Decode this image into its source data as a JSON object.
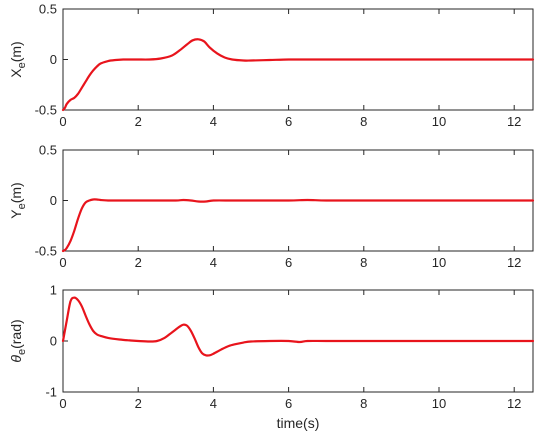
{
  "chart_data": [
    {
      "type": "line",
      "ylabel_main": "X",
      "ylabel_sub": "e",
      "ylabel_unit": "(m)",
      "ylabel_italic": false,
      "xlabel": "",
      "xlim": [
        0,
        12.5
      ],
      "ylim": [
        -0.5,
        0.5
      ],
      "xticks": [
        0,
        2,
        4,
        6,
        8,
        10,
        12
      ],
      "yticks": [
        -0.5,
        0,
        0.5
      ],
      "ytick_labels": [
        "-0.5",
        "0",
        "0.5"
      ],
      "grid": false,
      "color": "#e8141c",
      "series": [
        {
          "x": [
            0,
            0.05,
            0.1,
            0.2,
            0.3,
            0.4,
            0.5,
            0.6,
            0.7,
            0.8,
            0.9,
            1.0,
            1.2,
            1.4,
            1.6,
            1.8,
            2.0,
            2.3,
            2.6,
            2.9,
            3.1,
            3.3,
            3.45,
            3.6,
            3.75,
            3.9,
            4.1,
            4.3,
            4.5,
            4.8,
            5.0,
            5.5,
            6.0,
            6.5,
            7.0,
            8.0,
            9.0,
            10.0,
            11.0,
            12.5
          ],
          "y": [
            -0.5,
            -0.48,
            -0.44,
            -0.4,
            -0.38,
            -0.34,
            -0.28,
            -0.22,
            -0.16,
            -0.11,
            -0.07,
            -0.04,
            -0.015,
            -0.005,
            0.0,
            0.0,
            0.0,
            0.0,
            0.01,
            0.04,
            0.09,
            0.15,
            0.19,
            0.2,
            0.18,
            0.12,
            0.06,
            0.02,
            0.0,
            -0.01,
            -0.01,
            -0.005,
            0.0,
            0.0,
            0.0,
            0.0,
            0.0,
            0.0,
            0.0,
            0.0
          ]
        }
      ]
    },
    {
      "type": "line",
      "ylabel_main": "Y",
      "ylabel_sub": "e",
      "ylabel_unit": "(m)",
      "ylabel_italic": false,
      "xlabel": "",
      "xlim": [
        0,
        12.5
      ],
      "ylim": [
        -0.5,
        0.5
      ],
      "xticks": [
        0,
        2,
        4,
        6,
        8,
        10,
        12
      ],
      "yticks": [
        -0.5,
        0,
        0.5
      ],
      "ytick_labels": [
        "-0.5",
        "0",
        "0.5"
      ],
      "grid": false,
      "color": "#e8141c",
      "series": [
        {
          "x": [
            0,
            0.05,
            0.1,
            0.2,
            0.3,
            0.4,
            0.5,
            0.6,
            0.7,
            0.8,
            0.9,
            1.0,
            1.2,
            1.5,
            2.0,
            2.5,
            3.0,
            3.2,
            3.4,
            3.6,
            3.8,
            4.0,
            4.5,
            5.0,
            6.0,
            6.5,
            7.0,
            8.0,
            10.0,
            12.5
          ],
          "y": [
            -0.5,
            -0.49,
            -0.47,
            -0.4,
            -0.3,
            -0.18,
            -0.08,
            -0.02,
            0.0,
            0.01,
            0.01,
            0.005,
            0.0,
            0.0,
            0.0,
            0.0,
            0.0,
            0.005,
            0.0,
            -0.01,
            -0.01,
            0.0,
            0.0,
            0.0,
            0.0,
            0.005,
            0.0,
            0.0,
            0.0,
            0.0
          ]
        }
      ]
    },
    {
      "type": "line",
      "ylabel_main": "θ",
      "ylabel_sub": "e",
      "ylabel_unit": "(rad)",
      "ylabel_italic": true,
      "xlabel": "time(s)",
      "xlim": [
        0,
        12.5
      ],
      "ylim": [
        -1,
        1
      ],
      "xticks": [
        0,
        2,
        4,
        6,
        8,
        10,
        12
      ],
      "yticks": [
        -1,
        0,
        1
      ],
      "ytick_labels": [
        "-1",
        "0",
        "1"
      ],
      "grid": false,
      "color": "#e8141c",
      "series": [
        {
          "x": [
            0,
            0.1,
            0.2,
            0.3,
            0.4,
            0.5,
            0.6,
            0.7,
            0.8,
            0.9,
            1.0,
            1.2,
            1.5,
            1.8,
            2.0,
            2.3,
            2.5,
            2.7,
            2.9,
            3.1,
            3.2,
            3.3,
            3.4,
            3.5,
            3.6,
            3.7,
            3.8,
            3.9,
            4.0,
            4.2,
            4.4,
            4.6,
            4.8,
            5.0,
            5.5,
            6.0,
            6.3,
            6.5,
            7.0,
            8.0,
            10.0,
            12.5
          ],
          "y": [
            0.0,
            0.4,
            0.78,
            0.85,
            0.8,
            0.68,
            0.5,
            0.33,
            0.2,
            0.13,
            0.1,
            0.06,
            0.03,
            0.01,
            0.0,
            -0.01,
            0.0,
            0.06,
            0.17,
            0.28,
            0.32,
            0.3,
            0.2,
            0.05,
            -0.12,
            -0.24,
            -0.28,
            -0.28,
            -0.25,
            -0.17,
            -0.1,
            -0.06,
            -0.03,
            -0.01,
            0.0,
            0.0,
            -0.02,
            0.0,
            0.0,
            0.0,
            0.0,
            0.0
          ]
        }
      ]
    }
  ]
}
